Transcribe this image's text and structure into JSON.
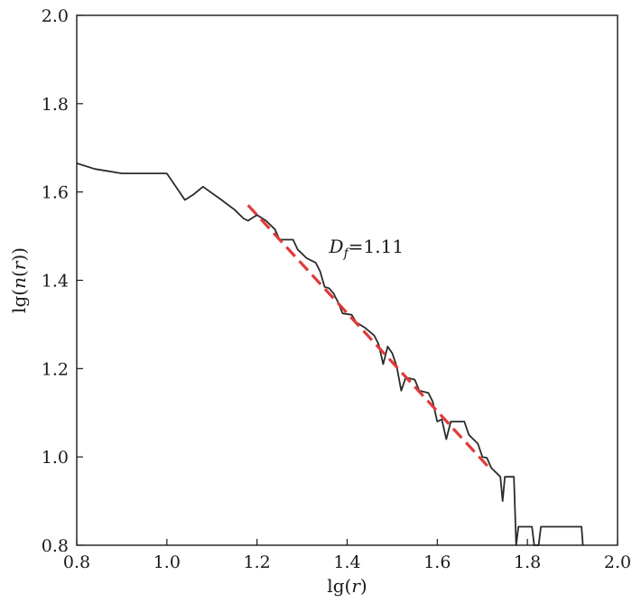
{
  "chart_data": {
    "type": "line",
    "xlabel_parts": [
      "lg(",
      "r",
      ")"
    ],
    "ylabel_parts": [
      "lg(",
      "n",
      "(",
      "r",
      "))"
    ],
    "xlim": [
      0.8,
      2.0
    ],
    "ylim": [
      0.8,
      2.0
    ],
    "x_ticks": [
      "0.8",
      "1.0",
      "1.2",
      "1.4",
      "1.6",
      "1.8",
      "2.0"
    ],
    "y_ticks": [
      "0.8",
      "1.0",
      "1.2",
      "1.4",
      "1.6",
      "1.8",
      "2.0"
    ],
    "grid": false,
    "series": [
      {
        "style": "solid",
        "color": "#2b2b2b",
        "points": [
          [
            0.8,
            1.665
          ],
          [
            0.84,
            1.652
          ],
          [
            0.9,
            1.642
          ],
          [
            1.0,
            1.642
          ],
          [
            1.04,
            1.582
          ],
          [
            1.06,
            1.595
          ],
          [
            1.08,
            1.612
          ],
          [
            1.12,
            1.583
          ],
          [
            1.15,
            1.56
          ],
          [
            1.17,
            1.54
          ],
          [
            1.18,
            1.535
          ],
          [
            1.2,
            1.548
          ],
          [
            1.22,
            1.535
          ],
          [
            1.24,
            1.515
          ],
          [
            1.25,
            1.492
          ],
          [
            1.28,
            1.492
          ],
          [
            1.29,
            1.47
          ],
          [
            1.31,
            1.45
          ],
          [
            1.33,
            1.44
          ],
          [
            1.34,
            1.42
          ],
          [
            1.35,
            1.385
          ],
          [
            1.36,
            1.382
          ],
          [
            1.37,
            1.37
          ],
          [
            1.38,
            1.35
          ],
          [
            1.39,
            1.325
          ],
          [
            1.41,
            1.322
          ],
          [
            1.42,
            1.305
          ],
          [
            1.44,
            1.292
          ],
          [
            1.46,
            1.275
          ],
          [
            1.47,
            1.255
          ],
          [
            1.48,
            1.21
          ],
          [
            1.49,
            1.25
          ],
          [
            1.5,
            1.235
          ],
          [
            1.51,
            1.205
          ],
          [
            1.52,
            1.15
          ],
          [
            1.53,
            1.18
          ],
          [
            1.55,
            1.175
          ],
          [
            1.56,
            1.15
          ],
          [
            1.58,
            1.145
          ],
          [
            1.59,
            1.125
          ],
          [
            1.6,
            1.08
          ],
          [
            1.61,
            1.085
          ],
          [
            1.62,
            1.04
          ],
          [
            1.63,
            1.08
          ],
          [
            1.66,
            1.08
          ],
          [
            1.67,
            1.05
          ],
          [
            1.68,
            1.04
          ],
          [
            1.69,
            1.03
          ],
          [
            1.7,
            1.0
          ],
          [
            1.71,
            0.998
          ],
          [
            1.72,
            0.975
          ],
          [
            1.74,
            0.955
          ],
          [
            1.745,
            0.9
          ],
          [
            1.75,
            0.955
          ],
          [
            1.77,
            0.955
          ],
          [
            1.775,
            0.8
          ],
          [
            1.78,
            0.842
          ],
          [
            1.81,
            0.842
          ],
          [
            1.815,
            0.8
          ],
          [
            1.825,
            0.8
          ],
          [
            1.83,
            0.842
          ],
          [
            1.92,
            0.842
          ],
          [
            1.923,
            0.8
          ]
        ]
      },
      {
        "style": "dashed",
        "color": "#e03a3a",
        "points": [
          [
            1.18,
            1.57
          ],
          [
            1.72,
            0.97
          ]
        ]
      }
    ],
    "annotation": {
      "prefix": "D",
      "subscript": "f",
      "value": "=1.11",
      "x": 1.36,
      "y": 1.462
    }
  }
}
